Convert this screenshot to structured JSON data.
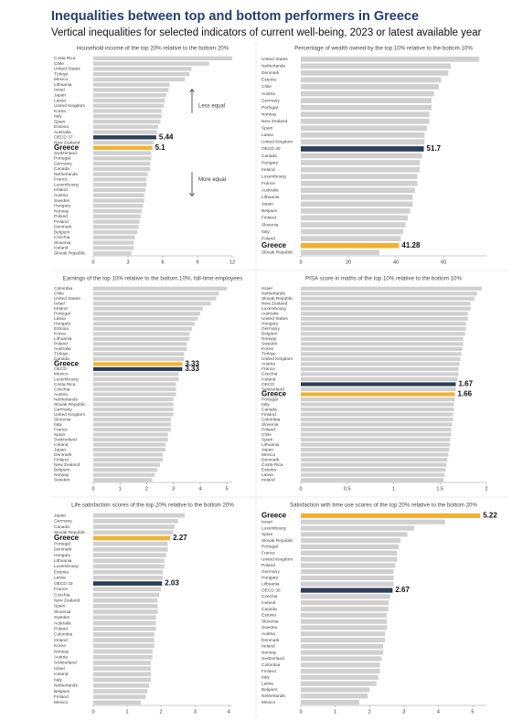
{
  "header": {
    "title": "Inequalities between top and bottom performers in Greece",
    "subtitle": "Vertical inequalities for selected indicators of current well-being, 2023 or latest available year"
  },
  "chart_data": [
    {
      "type": "bar",
      "orientation": "horizontal",
      "title": "Household income of the top 20% relative to the bottom 20%",
      "categories": [
        "Costa Rica",
        "Chile",
        "United States",
        "Türkiye",
        "Mexico",
        "Lithuania",
        "Israel",
        "Japan",
        "Latvia",
        "United Kingdom",
        "Korea",
        "Italy",
        "Spain",
        "Estonia",
        "Australia",
        "OECD 37",
        "New Zealand",
        "Greece",
        "Switzerland",
        "Portugal",
        "Germany",
        "Canada",
        "Netherlands",
        "France",
        "Luxembourg",
        "Ireland",
        "Austria",
        "Sweden",
        "Hungary",
        "Norway",
        "Poland",
        "Finland",
        "Denmark",
        "Belgium",
        "Czechia",
        "Slovenia",
        "Iceland",
        "Slovak Republic"
      ],
      "values": [
        12.0,
        10.0,
        8.5,
        8.3,
        7.9,
        6.6,
        6.5,
        6.3,
        6.2,
        6.1,
        5.9,
        5.9,
        5.8,
        5.6,
        5.5,
        5.44,
        5.2,
        5.1,
        5.0,
        5.0,
        4.9,
        4.9,
        4.7,
        4.6,
        4.6,
        4.5,
        4.4,
        4.4,
        4.3,
        4.2,
        4.1,
        4.0,
        3.9,
        3.8,
        3.6,
        3.5,
        3.5,
        3.3
      ],
      "colors": [
        "#d0d0d0",
        "#d0d0d0",
        "#d0d0d0",
        "#d0d0d0",
        "#d0d0d0",
        "#d0d0d0",
        "#d0d0d0",
        "#d0d0d0",
        "#d0d0d0",
        "#d0d0d0",
        "#d0d0d0",
        "#d0d0d0",
        "#d0d0d0",
        "#d0d0d0",
        "#d0d0d0",
        "#2d3e58",
        "#d0d0d0",
        "#f4b12e",
        "#d0d0d0",
        "#d0d0d0",
        "#d0d0d0",
        "#d0d0d0",
        "#d0d0d0",
        "#d0d0d0",
        "#d0d0d0",
        "#d0d0d0",
        "#d0d0d0",
        "#d0d0d0",
        "#d0d0d0",
        "#d0d0d0",
        "#d0d0d0",
        "#d0d0d0",
        "#d0d0d0",
        "#d0d0d0",
        "#d0d0d0",
        "#d0d0d0",
        "#d0d0d0",
        "#d0d0d0"
      ],
      "value_labels": [
        null,
        null,
        null,
        null,
        null,
        null,
        null,
        null,
        null,
        null,
        null,
        null,
        null,
        null,
        null,
        "5.44",
        null,
        "5.1",
        null,
        null,
        null,
        null,
        null,
        null,
        null,
        null,
        null,
        null,
        null,
        null,
        null,
        null,
        null,
        null,
        null,
        null,
        null,
        null
      ],
      "highlight_color": "#f4b12e",
      "xlim": [
        0,
        12
      ],
      "xticks": [
        0,
        3,
        6,
        9,
        12
      ],
      "annotations": [
        "Less equal",
        "More equal"
      ]
    },
    {
      "type": "bar",
      "orientation": "horizontal",
      "title": "Percentage of wealth owned by the top 10% relative to the bottom 10%",
      "categories": [
        "United States",
        "Netherlands",
        "Denmark",
        "Estonia",
        "Chile",
        "Austria",
        "Germany",
        "Portugal",
        "Norway",
        "New Zealand",
        "Spain",
        "Latvia",
        "United Kingdom",
        "OECD 30",
        "Canada",
        "Hungary",
        "Ireland",
        "Luxembourg",
        "France",
        "Australia",
        "Lithuania",
        "Japan",
        "Belgium",
        "Finland",
        "Slovenia",
        "Italy",
        "Poland",
        "Greece",
        "Slovak Republic"
      ],
      "values": [
        75,
        63,
        62,
        59,
        58,
        56,
        55,
        55,
        54,
        54,
        53,
        52,
        52,
        51.7,
        51,
        50,
        50,
        49,
        49,
        48,
        47,
        47,
        46,
        45,
        44,
        43,
        42,
        41.28,
        33
      ],
      "colors": [
        "#d0d0d0",
        "#d0d0d0",
        "#d0d0d0",
        "#d0d0d0",
        "#d0d0d0",
        "#d0d0d0",
        "#d0d0d0",
        "#d0d0d0",
        "#d0d0d0",
        "#d0d0d0",
        "#d0d0d0",
        "#d0d0d0",
        "#d0d0d0",
        "#2d3e58",
        "#d0d0d0",
        "#d0d0d0",
        "#d0d0d0",
        "#d0d0d0",
        "#d0d0d0",
        "#d0d0d0",
        "#d0d0d0",
        "#d0d0d0",
        "#d0d0d0",
        "#d0d0d0",
        "#d0d0d0",
        "#d0d0d0",
        "#d0d0d0",
        "#f4b12e",
        "#d0d0d0"
      ],
      "value_labels": [
        null,
        null,
        null,
        null,
        null,
        null,
        null,
        null,
        null,
        null,
        null,
        null,
        null,
        "51.7",
        null,
        null,
        null,
        null,
        null,
        null,
        null,
        null,
        null,
        null,
        null,
        null,
        null,
        "41.28",
        null
      ],
      "highlight_color": "#f4b12e",
      "xlim": [
        0,
        78
      ],
      "xticks": [
        0,
        20,
        40,
        60
      ]
    },
    {
      "type": "bar",
      "orientation": "horizontal",
      "title": "Earnings of the top 10% relative to the bottom 10%, full-time employees",
      "categories": [
        "Colombia",
        "Chile",
        "United States",
        "Israel",
        "Ireland",
        "Portugal",
        "Latvia",
        "Hungary",
        "Estonia",
        "Korea",
        "Lithuania",
        "Poland",
        "Australia",
        "Türkiye",
        "Canada",
        "Greece",
        "OECD",
        "Mexico",
        "Luxembourg",
        "Costa Rica",
        "Czechia",
        "Austria",
        "Netherlands",
        "Slovak Republic",
        "Germany",
        "United Kingdom",
        "Slovenia",
        "Italy",
        "France",
        "Spain",
        "Switzerland",
        "Iceland",
        "Japan",
        "Denmark",
        "Finland",
        "New Zealand",
        "Belgium",
        "Norway",
        "Sweden"
      ],
      "values": [
        5.0,
        4.7,
        4.6,
        4.4,
        4.1,
        4.0,
        3.9,
        3.8,
        3.7,
        3.6,
        3.6,
        3.5,
        3.5,
        3.4,
        3.4,
        3.33,
        3.33,
        3.2,
        3.2,
        3.1,
        3.1,
        3.1,
        3.0,
        3.0,
        3.0,
        3.0,
        2.9,
        2.9,
        2.9,
        2.8,
        2.8,
        2.7,
        2.7,
        2.6,
        2.6,
        2.5,
        2.4,
        2.3,
        2.2
      ],
      "colors": [
        "#d0d0d0",
        "#d0d0d0",
        "#d0d0d0",
        "#d0d0d0",
        "#d0d0d0",
        "#d0d0d0",
        "#d0d0d0",
        "#d0d0d0",
        "#d0d0d0",
        "#d0d0d0",
        "#d0d0d0",
        "#d0d0d0",
        "#d0d0d0",
        "#d0d0d0",
        "#d0d0d0",
        "#f4b12e",
        "#2d3e58",
        "#d0d0d0",
        "#d0d0d0",
        "#d0d0d0",
        "#d0d0d0",
        "#d0d0d0",
        "#d0d0d0",
        "#d0d0d0",
        "#d0d0d0",
        "#d0d0d0",
        "#d0d0d0",
        "#d0d0d0",
        "#d0d0d0",
        "#d0d0d0",
        "#d0d0d0",
        "#d0d0d0",
        "#d0d0d0",
        "#d0d0d0",
        "#d0d0d0",
        "#d0d0d0",
        "#d0d0d0",
        "#d0d0d0",
        "#d0d0d0"
      ],
      "value_labels": [
        null,
        null,
        null,
        null,
        null,
        null,
        null,
        null,
        null,
        null,
        null,
        null,
        null,
        null,
        null,
        "3.33",
        "3.33",
        null,
        null,
        null,
        null,
        null,
        null,
        null,
        null,
        null,
        null,
        null,
        null,
        null,
        null,
        null,
        null,
        null,
        null,
        null,
        null,
        null,
        null
      ],
      "highlight_color": "#f4b12e",
      "xlim": [
        0,
        5.2
      ],
      "xticks": [
        0,
        1,
        2,
        3,
        4,
        5
      ]
    },
    {
      "type": "bar",
      "orientation": "horizontal",
      "title": "PISA score in maths of the top 10% relative to the bottom 10%",
      "categories": [
        "Israel",
        "Netherlands",
        "Slovak Republic",
        "New Zealand",
        "Luxembourg",
        "Australia",
        "United States",
        "Hungary",
        "Germany",
        "Belgium",
        "Norway",
        "Sweden",
        "Korea",
        "Türkiye",
        "United Kingdom",
        "Austria",
        "France",
        "Czechia",
        "Iceland",
        "OECD",
        "Switzerland",
        "Greece",
        "Portugal",
        "Italy",
        "Canada",
        "Finland",
        "Colombia",
        "Slovenia",
        "Poland",
        "Chile",
        "Spain",
        "Lithuania",
        "Japan",
        "Mexico",
        "Denmark",
        "Costa Rica",
        "Estonia",
        "Latvia",
        "Ireland"
      ],
      "values": [
        1.95,
        1.9,
        1.87,
        1.83,
        1.83,
        1.8,
        1.8,
        1.78,
        1.78,
        1.77,
        1.75,
        1.75,
        1.74,
        1.73,
        1.72,
        1.71,
        1.7,
        1.7,
        1.69,
        1.67,
        1.67,
        1.66,
        1.66,
        1.65,
        1.65,
        1.64,
        1.64,
        1.63,
        1.62,
        1.62,
        1.61,
        1.61,
        1.6,
        1.59,
        1.58,
        1.57,
        1.56,
        1.55,
        1.54
      ],
      "colors": [
        "#d0d0d0",
        "#d0d0d0",
        "#d0d0d0",
        "#d0d0d0",
        "#d0d0d0",
        "#d0d0d0",
        "#d0d0d0",
        "#d0d0d0",
        "#d0d0d0",
        "#d0d0d0",
        "#d0d0d0",
        "#d0d0d0",
        "#d0d0d0",
        "#d0d0d0",
        "#d0d0d0",
        "#d0d0d0",
        "#d0d0d0",
        "#d0d0d0",
        "#d0d0d0",
        "#2d3e58",
        "#d0d0d0",
        "#f4b12e",
        "#d0d0d0",
        "#d0d0d0",
        "#d0d0d0",
        "#d0d0d0",
        "#d0d0d0",
        "#d0d0d0",
        "#d0d0d0",
        "#d0d0d0",
        "#d0d0d0",
        "#d0d0d0",
        "#d0d0d0",
        "#d0d0d0",
        "#d0d0d0",
        "#d0d0d0",
        "#d0d0d0",
        "#d0d0d0",
        "#d0d0d0"
      ],
      "value_labels": [
        null,
        null,
        null,
        null,
        null,
        null,
        null,
        null,
        null,
        null,
        null,
        null,
        null,
        null,
        null,
        null,
        null,
        null,
        null,
        "1.67",
        null,
        "1.66",
        null,
        null,
        null,
        null,
        null,
        null,
        null,
        null,
        null,
        null,
        null,
        null,
        null,
        null,
        null,
        null,
        null
      ],
      "highlight_color": "#f4b12e",
      "xlim": [
        0,
        2
      ],
      "xticks": [
        0,
        0.5,
        1,
        1.5,
        2
      ]
    },
    {
      "type": "bar",
      "orientation": "horizontal",
      "title": "Life satisfaction scores of the top 20% relative to the bottom 20%",
      "categories": [
        "Japan",
        "Germany",
        "Canada",
        "Slovak Republic",
        "Greece",
        "Portugal",
        "Denmark",
        "Hungary",
        "Lithuania",
        "Luxembourg",
        "Estonia",
        "Latvia",
        "OECD 33",
        "France",
        "Czechia",
        "New Zealand",
        "Spain",
        "Slovenia",
        "Sweden",
        "Australia",
        "Poland",
        "Colombia",
        "Ireland",
        "Korea",
        "Norway",
        "Austria",
        "Switzerland",
        "Israel",
        "Iceland",
        "Italy",
        "Netherlands",
        "Belgium",
        "Finland",
        "Mexico"
      ],
      "values": [
        2.7,
        2.5,
        2.4,
        2.35,
        2.27,
        2.2,
        2.2,
        2.15,
        2.1,
        2.1,
        2.05,
        2.05,
        2.03,
        2.0,
        1.95,
        1.9,
        1.9,
        1.9,
        1.85,
        1.85,
        1.85,
        1.8,
        1.8,
        1.8,
        1.75,
        1.75,
        1.7,
        1.7,
        1.7,
        1.7,
        1.65,
        1.6,
        1.55,
        1.4
      ],
      "colors": [
        "#d0d0d0",
        "#d0d0d0",
        "#d0d0d0",
        "#d0d0d0",
        "#f4b12e",
        "#d0d0d0",
        "#d0d0d0",
        "#d0d0d0",
        "#d0d0d0",
        "#d0d0d0",
        "#d0d0d0",
        "#d0d0d0",
        "#2d3e58",
        "#d0d0d0",
        "#d0d0d0",
        "#d0d0d0",
        "#d0d0d0",
        "#d0d0d0",
        "#d0d0d0",
        "#d0d0d0",
        "#d0d0d0",
        "#d0d0d0",
        "#d0d0d0",
        "#d0d0d0",
        "#d0d0d0",
        "#d0d0d0",
        "#d0d0d0",
        "#d0d0d0",
        "#d0d0d0",
        "#d0d0d0",
        "#d0d0d0",
        "#d0d0d0",
        "#d0d0d0",
        "#d0d0d0"
      ],
      "value_labels": [
        null,
        null,
        null,
        null,
        "2.27",
        null,
        null,
        null,
        null,
        null,
        null,
        null,
        "2.03",
        null,
        null,
        null,
        null,
        null,
        null,
        null,
        null,
        null,
        null,
        null,
        null,
        null,
        null,
        null,
        null,
        null,
        null,
        null,
        null,
        null
      ],
      "highlight_color": "#f4b12e",
      "xlim": [
        0,
        4.1
      ],
      "xticks": [
        0,
        1,
        2,
        3,
        4
      ]
    },
    {
      "type": "bar",
      "orientation": "horizontal",
      "title": "Satisfaction with time use scores of the top 20% relative to the bottom 20%",
      "categories": [
        "Greece",
        "Israel",
        "Luxembourg",
        "Spain",
        "Slovak Republic",
        "Portugal",
        "France",
        "United Kingdom",
        "Poland",
        "Germany",
        "Hungary",
        "Lithuania",
        "OECD 30",
        "Czechia",
        "Iceland",
        "Canada",
        "Estonia",
        "Slovenia",
        "Sweden",
        "Austria",
        "Denmark",
        "Ireland",
        "Norway",
        "Switzerland",
        "Colombia",
        "Finland",
        "Italy",
        "Latvia",
        "Belgium",
        "Netherlands",
        "Mexico"
      ],
      "values": [
        5.22,
        4.2,
        3.3,
        3.1,
        2.9,
        2.85,
        2.8,
        2.8,
        2.75,
        2.7,
        2.7,
        2.7,
        2.67,
        2.6,
        2.55,
        2.55,
        2.5,
        2.5,
        2.5,
        2.45,
        2.45,
        2.4,
        2.4,
        2.35,
        2.3,
        2.3,
        2.25,
        2.2,
        2.0,
        1.95,
        1.7
      ],
      "colors": [
        "#f4b12e",
        "#d0d0d0",
        "#d0d0d0",
        "#d0d0d0",
        "#d0d0d0",
        "#d0d0d0",
        "#d0d0d0",
        "#d0d0d0",
        "#d0d0d0",
        "#d0d0d0",
        "#d0d0d0",
        "#d0d0d0",
        "#2d3e58",
        "#d0d0d0",
        "#d0d0d0",
        "#d0d0d0",
        "#d0d0d0",
        "#d0d0d0",
        "#d0d0d0",
        "#d0d0d0",
        "#d0d0d0",
        "#d0d0d0",
        "#d0d0d0",
        "#d0d0d0",
        "#d0d0d0",
        "#d0d0d0",
        "#d0d0d0",
        "#d0d0d0",
        "#d0d0d0",
        "#d0d0d0",
        "#d0d0d0"
      ],
      "value_labels": [
        "5.22",
        null,
        null,
        null,
        null,
        null,
        null,
        null,
        null,
        null,
        null,
        null,
        "2.67",
        null,
        null,
        null,
        null,
        null,
        null,
        null,
        null,
        null,
        null,
        null,
        null,
        null,
        null,
        null,
        null,
        null,
        null
      ],
      "highlight_color": "#f4b12e",
      "xlim": [
        0,
        5.4
      ],
      "xticks": [
        0,
        1,
        2,
        3,
        4,
        5
      ]
    }
  ]
}
